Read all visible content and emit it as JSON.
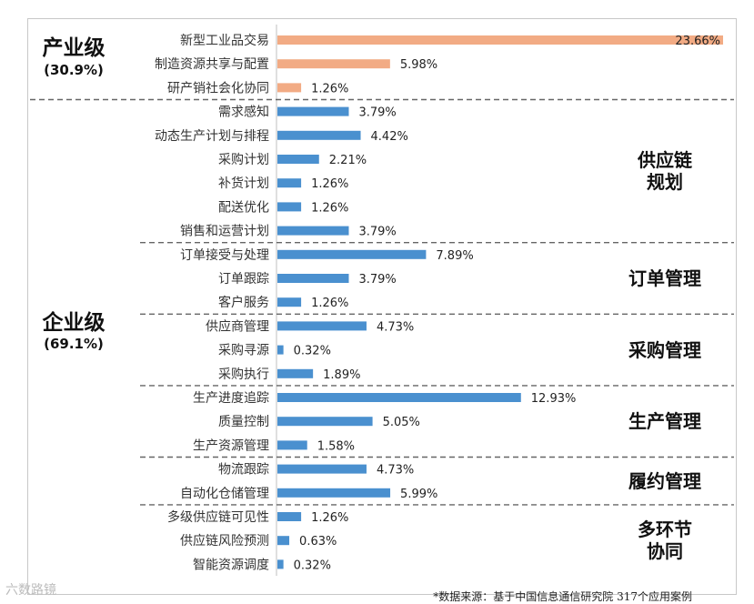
{
  "chart_data": {
    "type": "bar",
    "orientation": "horizontal",
    "categories": [
      "新型工业品交易",
      "制造资源共享与配置",
      "研产销社会化协同",
      "需求感知",
      "动态生产计划与排程",
      "采购计划",
      "补货计划",
      "配送优化",
      "销售和运营计划",
      "订单接受与处理",
      "订单跟踪",
      "客户服务",
      "供应商管理",
      "采购寻源",
      "采购执行",
      "生产进度追踪",
      "质量控制",
      "生产资源管理",
      "物流跟踪",
      "自动化仓储管理",
      "多级供应链可见性",
      "供应链风险预测",
      "智能资源调度"
    ],
    "values": [
      23.66,
      5.98,
      1.26,
      3.79,
      4.42,
      2.21,
      1.26,
      1.26,
      3.79,
      7.89,
      3.79,
      1.26,
      4.73,
      0.32,
      1.89,
      12.93,
      5.05,
      1.58,
      4.73,
      5.99,
      1.26,
      0.63,
      0.32
    ],
    "value_labels": [
      "23.66%",
      "5.98%",
      "1.26%",
      "3.79%",
      "4.42%",
      "2.21%",
      "1.26%",
      "1.26%",
      "3.79%",
      "7.89%",
      "3.79%",
      "1.26%",
      "4.73%",
      "0.32%",
      "1.89%",
      "12.93%",
      "5.05%",
      "1.58%",
      "4.73%",
      "5.99%",
      "1.26%",
      "0.63%",
      "0.32%"
    ],
    "xlim": [
      0,
      23.66
    ],
    "grid": false,
    "colors": {
      "industry": "#f2ab84",
      "enterprise": "#4a90cf"
    },
    "levels": [
      {
        "title": "产业级",
        "share": "(30.9%)",
        "start": 0,
        "count": 3,
        "color_key": "industry"
      },
      {
        "title": "企业级",
        "share": "(69.1%)",
        "start": 3,
        "count": 20,
        "color_key": "enterprise"
      }
    ],
    "groups": [
      {
        "title": [
          "供应链",
          "规划"
        ],
        "start": 3,
        "count": 6
      },
      {
        "title": [
          "订单管理"
        ],
        "start": 9,
        "count": 3
      },
      {
        "title": [
          "采购管理"
        ],
        "start": 12,
        "count": 3
      },
      {
        "title": [
          "生产管理"
        ],
        "start": 15,
        "count": 3
      },
      {
        "title": [
          "履约管理"
        ],
        "start": 18,
        "count": 2
      },
      {
        "title": [
          "多环节",
          "协同"
        ],
        "start": 20,
        "count": 3
      }
    ]
  },
  "source_note": "*数据来源：基于中国信息通信研究院  317个应用案例",
  "watermark": "六数路镜"
}
